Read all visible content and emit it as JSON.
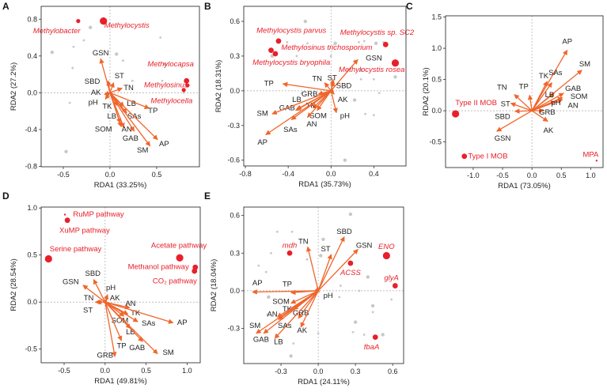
{
  "colors": {
    "arrow": "#f0652b",
    "taxon": "#e8202a",
    "sample": "#c8c8c8",
    "frame": "#333333",
    "zero": "#aaaaaa"
  },
  "chart_data": [
    {
      "panel": "A",
      "type": "scatter",
      "xlabel": "RDA1 (33.25%)",
      "ylabel": "RDA2 (27.2%)",
      "xlim": [
        -0.737,
        0.958
      ],
      "ylim": [
        -0.805,
        0.94
      ],
      "xticks": [
        -0.5,
        0.0,
        0.5
      ],
      "yticks": [
        -0.8,
        -0.4,
        0.0,
        0.4,
        0.8
      ],
      "xtick_labels": [
        "-0.5",
        "0.0",
        "0.5"
      ],
      "ytick_labels": [
        "-0.8",
        "-0.4",
        "0.0",
        "0.4",
        "0.8"
      ],
      "arrows": [
        {
          "name": "GSN",
          "x": -0.1,
          "y": 0.37
        },
        {
          "name": "ST",
          "x": 0.04,
          "y": 0.11
        },
        {
          "name": "SBD",
          "x": -0.02,
          "y": 0.13
        },
        {
          "name": "TN",
          "x": 0.13,
          "y": 0.05
        },
        {
          "name": "AK",
          "x": -0.06,
          "y": -0.02
        },
        {
          "name": "pH",
          "x": -0.05,
          "y": -0.07
        },
        {
          "name": "TK",
          "x": 0.08,
          "y": -0.14
        },
        {
          "name": "LB",
          "x": 0.15,
          "y": -0.15
        },
        {
          "name": "LB",
          "x": 0.11,
          "y": -0.33
        },
        {
          "name": "SAs",
          "x": 0.18,
          "y": -0.22
        },
        {
          "name": "TP",
          "x": 0.42,
          "y": -0.17
        },
        {
          "name": "SOM",
          "x": 0.12,
          "y": -0.37
        },
        {
          "name": "AN",
          "x": 0.15,
          "y": -0.38
        },
        {
          "name": "GAB",
          "x": 0.26,
          "y": -0.42
        },
        {
          "name": "SM",
          "x": 0.43,
          "y": -0.58
        },
        {
          "name": "AP",
          "x": 0.51,
          "y": -0.51
        }
      ],
      "taxa": [
        {
          "name": "Methylobacter",
          "x": -0.34,
          "y": 0.78,
          "size": "small",
          "italic": true
        },
        {
          "name": "Methylocystis",
          "x": -0.07,
          "y": 0.78,
          "size": "large",
          "italic": true
        },
        {
          "name": "Methylocapsa",
          "x": 0.82,
          "y": 0.13,
          "size": "medium",
          "italic": true
        },
        {
          "name": "Methylosinus",
          "x": 0.83,
          "y": 0.08,
          "size": "small",
          "italic": true
        },
        {
          "name": "Methylocella",
          "x": 0.79,
          "y": 0.03,
          "size": "small",
          "italic": true
        }
      ],
      "samples": [
        [
          -0.62,
          0.44
        ],
        [
          -0.39,
          0.5
        ],
        [
          -0.28,
          0.57
        ],
        [
          -0.21,
          0.71
        ],
        [
          -0.4,
          0.27
        ],
        [
          -0.43,
          -0.11
        ],
        [
          0.07,
          0.42
        ],
        [
          0.14,
          0.35
        ],
        [
          0.54,
          0.6
        ],
        [
          0.59,
          0.31
        ],
        [
          0.56,
          0.13
        ],
        [
          0.24,
          0.13
        ],
        [
          -0.47,
          -0.64
        ],
        [
          0.79,
          0.0
        ]
      ]
    },
    {
      "panel": "B",
      "type": "scatter",
      "xlabel": "RDA1 (35.73%)",
      "ylabel": "RDA2 (18.31%)",
      "xlim": [
        -0.815,
        0.7
      ],
      "ylim": [
        -0.65,
        0.73
      ],
      "xticks": [
        -0.8,
        -0.4,
        0.0,
        0.4
      ],
      "yticks": [
        -0.6,
        -0.3,
        0.0,
        0.3,
        0.6
      ],
      "xtick_labels": [
        "-0.8",
        "-0.4",
        "0.0",
        "0.4"
      ],
      "ytick_labels": [
        "-0.6",
        "-0.3",
        "0.0",
        "0.3",
        "0.6"
      ],
      "arrows": [
        {
          "name": "GSN",
          "x": 0.25,
          "y": 0.27
        },
        {
          "name": "ST",
          "x": 0.02,
          "y": 0.1
        },
        {
          "name": "TN",
          "x": -0.06,
          "y": 0.07
        },
        {
          "name": "SBD",
          "x": 0.025,
          "y": 0.08
        },
        {
          "name": "GRB",
          "x": -0.12,
          "y": -0.03
        },
        {
          "name": "AK",
          "x": 0.03,
          "y": -0.03
        },
        {
          "name": "pH",
          "x": 0.05,
          "y": -0.19
        },
        {
          "name": "SOM",
          "x": -0.13,
          "y": -0.17
        },
        {
          "name": "AN",
          "x": -0.22,
          "y": -0.23
        },
        {
          "name": "TK",
          "x": -0.17,
          "y": -0.15
        },
        {
          "name": "LB",
          "x": -0.33,
          "y": -0.17
        },
        {
          "name": "GAB",
          "x": -0.32,
          "y": -0.16
        },
        {
          "name": "SAs",
          "x": -0.37,
          "y": -0.25
        },
        {
          "name": "TP",
          "x": -0.45,
          "y": 0.06
        },
        {
          "name": "SM",
          "x": -0.55,
          "y": -0.2
        },
        {
          "name": "AP",
          "x": -0.61,
          "y": -0.38
        }
      ],
      "taxa": [
        {
          "name": "Methylocystis parvus",
          "x": -0.49,
          "y": 0.43,
          "size": "medium",
          "italic": true
        },
        {
          "name": "Methylocystis sp. SC2",
          "x": 0.51,
          "y": 0.4,
          "size": "medium",
          "italic": true
        },
        {
          "name": "Methylosinus trichosporium",
          "x": -0.56,
          "y": 0.35,
          "size": "medium",
          "italic": true
        },
        {
          "name": "Methylocystis bryophila",
          "x": -0.52,
          "y": 0.32,
          "size": "medium",
          "italic": true
        },
        {
          "name": "Methylocystis rosea",
          "x": 0.6,
          "y": 0.24,
          "size": "large",
          "italic": true
        }
      ],
      "samples": [
        [
          -0.24,
          0.6
        ],
        [
          -0.41,
          0.42
        ],
        [
          -0.22,
          0.41
        ],
        [
          -0.55,
          0.3
        ],
        [
          -0.32,
          0.3
        ],
        [
          0.0,
          0.3
        ],
        [
          0.04,
          0.41
        ],
        [
          0.26,
          0.42
        ],
        [
          0.31,
          0.43
        ],
        [
          0.42,
          0.41
        ],
        [
          0.49,
          0.42
        ],
        [
          0.22,
          0.26
        ],
        [
          0.28,
          0.18
        ],
        [
          0.28,
          0.1
        ],
        [
          0.4,
          0.1
        ],
        [
          0.6,
          0.12
        ],
        [
          -0.27,
          -0.02
        ],
        [
          0.45,
          -0.02
        ],
        [
          0.22,
          -0.08
        ],
        [
          0.32,
          -0.2
        ],
        [
          0.4,
          -0.21
        ],
        [
          0.13,
          -0.6
        ]
      ]
    },
    {
      "panel": "C",
      "type": "scatter",
      "xlabel": "RDA1 (73.05%)",
      "ylabel": "RDA2 (20.1%)",
      "xlim": [
        -1.47,
        1.21
      ],
      "ylim": [
        -0.91,
        1.52
      ],
      "xticks": [
        -1.0,
        -0.5,
        0.0,
        0.5,
        1.0
      ],
      "yticks": [
        -0.5,
        0.0,
        0.5,
        1.0,
        1.5
      ],
      "xtick_labels": [
        "-1.0",
        "-0.5",
        "0.0",
        "0.5",
        "1.0"
      ],
      "ytick_labels": [
        "-0.5",
        "0.0",
        "0.5",
        "1.0",
        "1.5"
      ],
      "arrows": [
        {
          "name": "AP",
          "x": 0.6,
          "y": 0.97
        },
        {
          "name": "SM",
          "x": 0.85,
          "y": 0.65
        },
        {
          "name": "TK",
          "x": 0.26,
          "y": 0.47
        },
        {
          "name": "SAs",
          "x": 0.34,
          "y": 0.45
        },
        {
          "name": "GAB",
          "x": 0.54,
          "y": 0.28
        },
        {
          "name": "LB",
          "x": 0.38,
          "y": 0.28
        },
        {
          "name": "SOM",
          "x": 0.52,
          "y": 0.21
        },
        {
          "name": "AN",
          "x": 0.52,
          "y": 0.18
        },
        {
          "name": "pH",
          "x": 0.4,
          "y": 0.15
        },
        {
          "name": "GRB",
          "x": 0.2,
          "y": 0.0
        },
        {
          "name": "AK",
          "x": 0.27,
          "y": -0.17
        },
        {
          "name": "TN",
          "x": -0.3,
          "y": 0.26
        },
        {
          "name": "TP",
          "x": -0.04,
          "y": 0.25
        },
        {
          "name": "ST",
          "x": -0.36,
          "y": 0.12
        },
        {
          "name": "SBD",
          "x": -0.29,
          "y": -0.01
        },
        {
          "name": "GSN",
          "x": -0.6,
          "y": -0.33
        }
      ],
      "taxa": [
        {
          "name": "Type II MOB",
          "x": -1.3,
          "y": -0.05,
          "size": "large",
          "italic": false
        },
        {
          "name": "Type I MOB",
          "x": -1.15,
          "y": -0.73,
          "size": "medium",
          "italic": false
        },
        {
          "name": "MPA",
          "x": 1.1,
          "y": -0.8,
          "size": "tiny",
          "italic": false
        }
      ],
      "samples": []
    },
    {
      "panel": "D",
      "type": "scatter",
      "xlabel": "RDA1 (49.81%)",
      "ylabel": "RDA2 (28.54%)",
      "xlim": [
        -0.78,
        1.16
      ],
      "ylim": [
        -0.645,
        1.01
      ],
      "xticks": [
        -0.5,
        0.0,
        0.5,
        1.0
      ],
      "yticks": [
        -0.5,
        0.0,
        0.5,
        1.0
      ],
      "xtick_labels": [
        "-0.5",
        "0.0",
        "0.5",
        "1.0"
      ],
      "ytick_labels": [
        "-0.5",
        "0.0",
        "0.5",
        "1.0"
      ],
      "arrows": [
        {
          "name": "GSN",
          "x": -0.27,
          "y": 0.18
        },
        {
          "name": "SBD",
          "x": -0.14,
          "y": 0.24
        },
        {
          "name": "pH",
          "x": 0.03,
          "y": 0.08
        },
        {
          "name": "AK",
          "x": 0.02,
          "y": 0.03
        },
        {
          "name": "TN",
          "x": -0.12,
          "y": 0.0
        },
        {
          "name": "ST",
          "x": -0.1,
          "y": 0.0
        },
        {
          "name": "AN",
          "x": 0.3,
          "y": -0.06
        },
        {
          "name": "TK",
          "x": 0.28,
          "y": -0.13
        },
        {
          "name": "SAs",
          "x": 0.4,
          "y": -0.21
        },
        {
          "name": "AP",
          "x": 0.83,
          "y": -0.22
        },
        {
          "name": "SOM",
          "x": 0.23,
          "y": -0.15
        },
        {
          "name": "LB",
          "x": 0.31,
          "y": -0.28
        },
        {
          "name": "TP",
          "x": 0.2,
          "y": -0.41
        },
        {
          "name": "GAB",
          "x": 0.46,
          "y": -0.42
        },
        {
          "name": "SM",
          "x": 0.64,
          "y": -0.55
        },
        {
          "name": "GRB",
          "x": 0.12,
          "y": -0.58
        }
      ],
      "taxa": [
        {
          "name": "RuMP pathway",
          "x": -0.49,
          "y": 0.93,
          "size": "tiny",
          "italic": false
        },
        {
          "name": "XuMP pathway",
          "x": -0.46,
          "y": 0.87,
          "size": "medium",
          "italic": false
        },
        {
          "name": "Serine pathway",
          "x": -0.69,
          "y": 0.46,
          "size": "large",
          "italic": false
        },
        {
          "name": "Acetate pathway",
          "x": 0.91,
          "y": 0.47,
          "size": "large",
          "italic": false
        },
        {
          "name": "Methanol pathway",
          "x": 1.1,
          "y": 0.37,
          "size": "medium",
          "italic": false
        },
        {
          "name": "CO₂ pathway",
          "x": 1.09,
          "y": 0.33,
          "size": "medium",
          "italic": false
        }
      ],
      "samples": []
    },
    {
      "panel": "E",
      "type": "scatter",
      "xlabel": "RDA1 (24.11%)",
      "ylabel": "RDA2 (18.04%)",
      "xlim": [
        -0.6,
        0.688
      ],
      "ylim": [
        -0.58,
        0.667
      ],
      "xticks": [
        -0.3,
        0.0,
        0.3,
        0.6
      ],
      "yticks": [
        -0.3,
        0.0,
        0.3,
        0.6
      ],
      "xtick_labels": [
        "-0.3",
        "0.0",
        "0.3",
        "0.6"
      ],
      "ytick_labels": [
        "-0.3",
        "0.0",
        "0.3",
        "0.6"
      ],
      "arrows": [
        {
          "name": "TN",
          "x": -0.085,
          "y": 0.35
        },
        {
          "name": "ST",
          "x": 0.105,
          "y": 0.29
        },
        {
          "name": "SBD",
          "x": 0.21,
          "y": 0.43
        },
        {
          "name": "GSN",
          "x": 0.32,
          "y": 0.33
        },
        {
          "name": "AP",
          "x": -0.53,
          "y": -0.01
        },
        {
          "name": "TP",
          "x": -0.22,
          "y": -0.015
        },
        {
          "name": "SOM",
          "x": -0.22,
          "y": -0.1
        },
        {
          "name": "TK",
          "x": -0.2,
          "y": -0.15
        },
        {
          "name": "GRB",
          "x": -0.16,
          "y": -0.22
        },
        {
          "name": "AK",
          "x": -0.14,
          "y": -0.29
        },
        {
          "name": "LB",
          "x": -0.35,
          "y": -0.38
        },
        {
          "name": "GAB",
          "x": -0.44,
          "y": -0.34
        },
        {
          "name": "SM",
          "x": -0.5,
          "y": -0.34
        },
        {
          "name": "SAs",
          "x": -0.32,
          "y": -0.23
        },
        {
          "name": "AN",
          "x": -0.33,
          "y": -0.21
        },
        {
          "name": "pH",
          "x": 0.01,
          "y": -0.01
        }
      ],
      "taxa": [
        {
          "name": "mdh",
          "x": -0.23,
          "y": 0.3,
          "size": "medium",
          "italic": true
        },
        {
          "name": "ENO",
          "x": 0.55,
          "y": 0.28,
          "size": "large",
          "italic": true
        },
        {
          "name": "ACSS",
          "x": 0.26,
          "y": 0.22,
          "size": "medium",
          "italic": true
        },
        {
          "name": "glyA",
          "x": 0.62,
          "y": 0.04,
          "size": "medium",
          "italic": true
        },
        {
          "name": "fbaA",
          "x": 0.46,
          "y": -0.37,
          "size": "medium",
          "italic": true
        }
      ],
      "samples": [
        [
          0.26,
          0.61
        ],
        [
          -0.33,
          0.47
        ],
        [
          -0.21,
          0.47
        ],
        [
          0.04,
          0.41
        ],
        [
          -0.38,
          0.3
        ],
        [
          -0.09,
          0.25
        ],
        [
          0.02,
          0.28
        ],
        [
          -0.48,
          0.2
        ],
        [
          -0.42,
          0.15
        ],
        [
          0.4,
          0.11
        ],
        [
          0.18,
          0.04
        ],
        [
          0.33,
          0.0
        ],
        [
          -0.4,
          -0.05
        ],
        [
          0.17,
          -0.05
        ],
        [
          0.59,
          -0.07
        ],
        [
          0.44,
          -0.12
        ],
        [
          0.44,
          -0.17
        ],
        [
          -0.41,
          -0.19
        ],
        [
          0.3,
          -0.25
        ],
        [
          0.28,
          -0.33
        ],
        [
          0.37,
          -0.35
        ],
        [
          0.52,
          -0.35
        ],
        [
          -0.34,
          -0.36
        ],
        [
          0.0,
          -0.34
        ],
        [
          -0.22,
          -0.52
        ],
        [
          -0.2,
          -0.42
        ]
      ]
    }
  ]
}
